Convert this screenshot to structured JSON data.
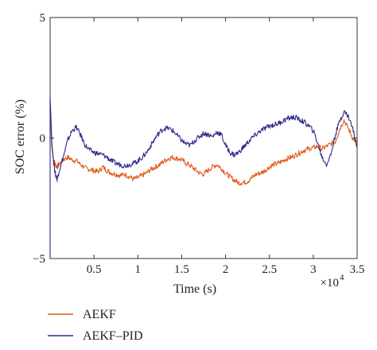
{
  "chart_data": {
    "type": "line",
    "title": "",
    "xlabel": "Time (s)",
    "ylabel": "SOC error (%)",
    "x_multiplier_label": "×10",
    "x_multiplier_exponent": "4",
    "xlim": [
      0,
      3.5
    ],
    "ylim": [
      -5,
      5
    ],
    "x_ticks": [
      0.5,
      1,
      1.5,
      2,
      2.5,
      3,
      3.5
    ],
    "x_tick_labels": [
      "0.5",
      "1",
      "1.5",
      "2",
      "2.5",
      "3",
      "3.5"
    ],
    "y_ticks": [
      -5,
      0,
      5
    ],
    "y_tick_labels": [
      "−5",
      "0",
      "5"
    ],
    "grid": false,
    "legend_position": "below",
    "series": [
      {
        "name": "AEKF",
        "color": "#e05a1c",
        "x": [
          0,
          0.01,
          0.02,
          0.04,
          0.06,
          0.08,
          0.1,
          0.15,
          0.2,
          0.25,
          0.3,
          0.35,
          0.4,
          0.45,
          0.5,
          0.55,
          0.6,
          0.65,
          0.7,
          0.75,
          0.8,
          0.85,
          0.9,
          0.95,
          1.0,
          1.05,
          1.1,
          1.15,
          1.2,
          1.25,
          1.3,
          1.35,
          1.4,
          1.45,
          1.5,
          1.55,
          1.6,
          1.65,
          1.7,
          1.75,
          1.8,
          1.85,
          1.9,
          1.95,
          2.0,
          2.05,
          2.1,
          2.15,
          2.2,
          2.25,
          2.3,
          2.35,
          2.4,
          2.45,
          2.5,
          2.55,
          2.6,
          2.65,
          2.7,
          2.75,
          2.8,
          2.85,
          2.9,
          2.95,
          3.0,
          3.05,
          3.1,
          3.15,
          3.2,
          3.25,
          3.3,
          3.35,
          3.4,
          3.45,
          3.5
        ],
        "y": [
          1.2,
          0.3,
          -0.4,
          -0.9,
          -1.1,
          -1.2,
          -1.1,
          -0.9,
          -0.8,
          -0.9,
          -0.95,
          -1.1,
          -1.25,
          -1.3,
          -1.35,
          -1.4,
          -1.2,
          -1.35,
          -1.45,
          -1.5,
          -1.55,
          -1.5,
          -1.6,
          -1.7,
          -1.65,
          -1.55,
          -1.45,
          -1.3,
          -1.2,
          -1.1,
          -0.95,
          -0.85,
          -0.8,
          -0.85,
          -0.9,
          -1.05,
          -1.15,
          -1.3,
          -1.45,
          -1.5,
          -1.35,
          -1.2,
          -1.1,
          -1.25,
          -1.45,
          -1.6,
          -1.75,
          -1.85,
          -1.85,
          -1.8,
          -1.65,
          -1.5,
          -1.45,
          -1.35,
          -1.2,
          -1.1,
          -1.05,
          -0.95,
          -0.85,
          -0.8,
          -0.7,
          -0.6,
          -0.5,
          -0.45,
          -0.4,
          -0.35,
          -0.45,
          -0.35,
          -0.25,
          -0.15,
          0.35,
          0.75,
          0.4,
          0.0,
          -0.2
        ]
      },
      {
        "name": "AEKF–PID",
        "color": "#2e2a8c",
        "x": [
          0,
          0.01,
          0.02,
          0.04,
          0.06,
          0.08,
          0.1,
          0.15,
          0.2,
          0.25,
          0.3,
          0.35,
          0.4,
          0.45,
          0.5,
          0.55,
          0.6,
          0.65,
          0.7,
          0.75,
          0.8,
          0.85,
          0.9,
          0.95,
          1.0,
          1.05,
          1.1,
          1.15,
          1.2,
          1.25,
          1.3,
          1.35,
          1.4,
          1.45,
          1.5,
          1.55,
          1.6,
          1.65,
          1.7,
          1.75,
          1.8,
          1.85,
          1.9,
          1.95,
          2.0,
          2.05,
          2.1,
          2.15,
          2.2,
          2.25,
          2.3,
          2.35,
          2.4,
          2.45,
          2.5,
          2.55,
          2.6,
          2.65,
          2.7,
          2.75,
          2.8,
          2.85,
          2.9,
          2.95,
          3.0,
          3.05,
          3.1,
          3.15,
          3.2,
          3.25,
          3.3,
          3.35,
          3.4,
          3.45,
          3.5
        ],
        "y": [
          1.7,
          0.8,
          -0.2,
          -1.0,
          -1.5,
          -1.7,
          -1.4,
          -0.8,
          -0.1,
          0.3,
          0.45,
          0.1,
          -0.3,
          -0.5,
          -0.6,
          -0.65,
          -0.7,
          -0.8,
          -0.95,
          -1.05,
          -1.1,
          -1.15,
          -1.1,
          -1.05,
          -0.95,
          -0.8,
          -0.6,
          -0.3,
          0.0,
          0.25,
          0.4,
          0.4,
          0.3,
          0.1,
          -0.1,
          -0.25,
          -0.3,
          -0.1,
          0.05,
          0.2,
          0.15,
          0.05,
          0.25,
          0.15,
          -0.3,
          -0.6,
          -0.7,
          -0.6,
          -0.4,
          -0.2,
          0.0,
          0.15,
          0.3,
          0.4,
          0.5,
          0.55,
          0.6,
          0.7,
          0.8,
          0.85,
          0.85,
          0.75,
          0.65,
          0.5,
          0.3,
          -0.2,
          -0.8,
          -1.1,
          -0.7,
          0.1,
          0.7,
          1.1,
          0.9,
          0.4,
          -0.4
        ]
      }
    ]
  }
}
